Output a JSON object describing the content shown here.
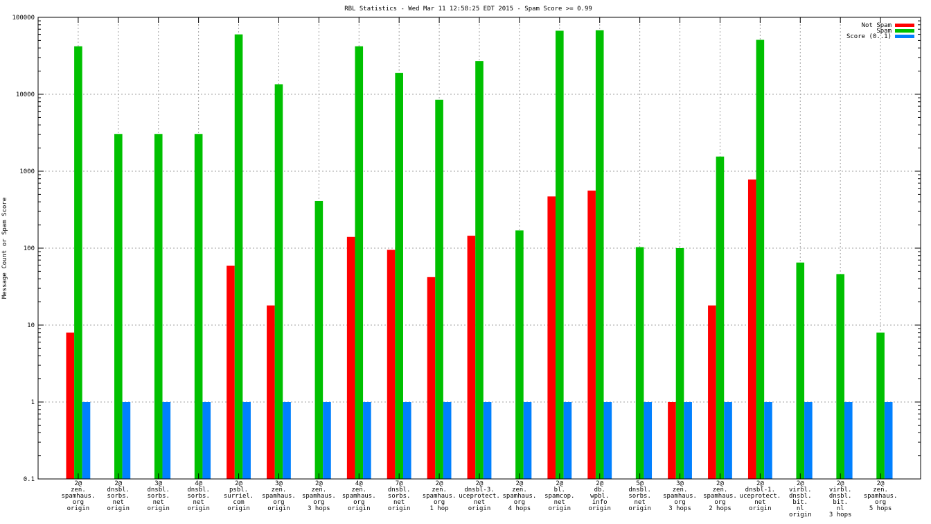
{
  "chart_data": {
    "type": "bar",
    "title": "RBL Statistics - Wed Mar 11 12:58:25 EDT 2015 - Spam Score >= 0.99",
    "xlabel": "",
    "ylabel": "Message Count or Spam Score",
    "yscale": "log",
    "ylim": [
      0.1,
      100000
    ],
    "yticks": [
      "0.1",
      "1",
      "10",
      "100",
      "1000",
      "10000",
      "100000"
    ],
    "grid": true,
    "legend_position": "top-right",
    "categories": [
      [
        "2@",
        "zen.",
        "spamhaus.",
        "org",
        "origin"
      ],
      [
        "2@",
        "dnsbl.",
        "sorbs.",
        "net",
        "origin"
      ],
      [
        "3@",
        "dnsbl.",
        "sorbs.",
        "net",
        "origin"
      ],
      [
        "4@",
        "dnsbl.",
        "sorbs.",
        "net",
        "origin"
      ],
      [
        "2@",
        "psbl.",
        "surriel.",
        "com",
        "origin"
      ],
      [
        "3@",
        "zen.",
        "spamhaus.",
        "org",
        "origin"
      ],
      [
        "2@",
        "zen.",
        "spamhaus.",
        "org",
        "3 hops"
      ],
      [
        "4@",
        "zen.",
        "spamhaus.",
        "org",
        "origin"
      ],
      [
        "7@",
        "dnsbl.",
        "sorbs.",
        "net",
        "origin"
      ],
      [
        "2@",
        "zen.",
        "spamhaus.",
        "org",
        "1 hop"
      ],
      [
        "2@",
        "dnsbl-3.",
        "uceprotect.",
        "net",
        "origin"
      ],
      [
        "2@",
        "zen.",
        "spamhaus.",
        "org",
        "4 hops"
      ],
      [
        "2@",
        "bl.",
        "spamcop.",
        "net",
        "origin"
      ],
      [
        "2@",
        "db.",
        "wpbl.",
        "info",
        "origin"
      ],
      [
        "5@",
        "dnsbl.",
        "sorbs.",
        "net",
        "origin"
      ],
      [
        "3@",
        "zen.",
        "spamhaus.",
        "org",
        "3 hops"
      ],
      [
        "2@",
        "zen.",
        "spamhaus.",
        "org",
        "2 hops"
      ],
      [
        "2@",
        "dnsbl-1.",
        "uceprotect.",
        "net",
        "origin"
      ],
      [
        "2@",
        "virbl.",
        "dnsbl.",
        "bit.",
        "nl",
        "origin"
      ],
      [
        "2@",
        "virbl.",
        "dnsbl.",
        "bit.",
        "nl",
        "3 hops"
      ],
      [
        "2@",
        "zen.",
        "spamhaus.",
        "org",
        "5 hops"
      ]
    ],
    "series": [
      {
        "name": "Not Spam",
        "color": "#ff0000",
        "values": [
          8,
          null,
          null,
          null,
          59,
          18,
          null,
          140,
          95,
          42,
          145,
          null,
          470,
          560,
          null,
          1,
          18,
          780,
          null,
          null,
          null
        ]
      },
      {
        "name": "Spam",
        "color": "#00c000",
        "values": [
          42000,
          3050,
          3050,
          3050,
          60000,
          13500,
          410,
          42000,
          19000,
          8500,
          27000,
          170,
          67000,
          68000,
          103,
          100,
          1550,
          51000,
          65,
          46,
          8
        ]
      },
      {
        "name": "Score (0..1)",
        "color": "#0080ff",
        "values": [
          1,
          1,
          1,
          1,
          1,
          1,
          1,
          1,
          1,
          1,
          1,
          1,
          1,
          1,
          1,
          1,
          1,
          1,
          1,
          1,
          1
        ]
      }
    ]
  }
}
